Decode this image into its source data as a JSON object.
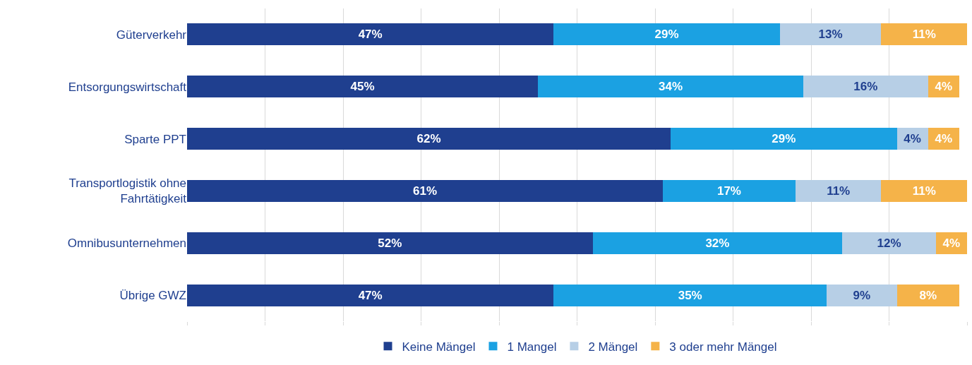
{
  "chart_data": {
    "type": "bar",
    "orientation": "horizontal",
    "stacked": true,
    "categories": [
      "Güterverkehr",
      "Entsorgungswirtschaft",
      "Sparte PPT",
      "Transportlogistik ohne Fahrtätigkeit",
      "Omnibusunternehmen",
      "Übrige GWZ"
    ],
    "series": [
      {
        "name": "Keine Mängel",
        "color": "#1f3f8f",
        "values": [
          47,
          45,
          62,
          61,
          52,
          47
        ],
        "value_labels": [
          "47%",
          "45%",
          "62%",
          "61%",
          "52%",
          "47%"
        ]
      },
      {
        "name": "1 Mangel",
        "color": "#1ba1e2",
        "values": [
          29,
          34,
          29,
          17,
          32,
          35
        ],
        "value_labels": [
          "29%",
          "34%",
          "29%",
          "17%",
          "32%",
          "35%"
        ]
      },
      {
        "name": "2 Mängel",
        "color": "#b7cfe6",
        "values": [
          13,
          16,
          4,
          11,
          12,
          9
        ],
        "value_labels": [
          "13%",
          "16%",
          "4%",
          "11%",
          "12%",
          "9%"
        ]
      },
      {
        "name": "3 oder mehr Mängel",
        "color": "#f5b349",
        "values": [
          11,
          4,
          4,
          11,
          4,
          8
        ],
        "value_labels": [
          "11%",
          "4%",
          "4%",
          "11%",
          "4%",
          "8%"
        ]
      }
    ],
    "xlim": [
      0,
      100
    ],
    "xticks": [
      {
        "value": 0,
        "label": null
      },
      {
        "value": 10,
        "label": null
      },
      {
        "value": 20,
        "label": null
      },
      {
        "value": 30,
        "label": null
      },
      {
        "value": 40,
        "label": null
      },
      {
        "value": 50,
        "label": null
      },
      {
        "value": 60,
        "label": null
      },
      {
        "value": 70,
        "label": null
      },
      {
        "value": 80,
        "label": null
      },
      {
        "value": 90,
        "label": null
      },
      {
        "value": 100,
        "label": null
      }
    ],
    "tick_labels": "y",
    "grid": "x",
    "legend": "bottom"
  }
}
